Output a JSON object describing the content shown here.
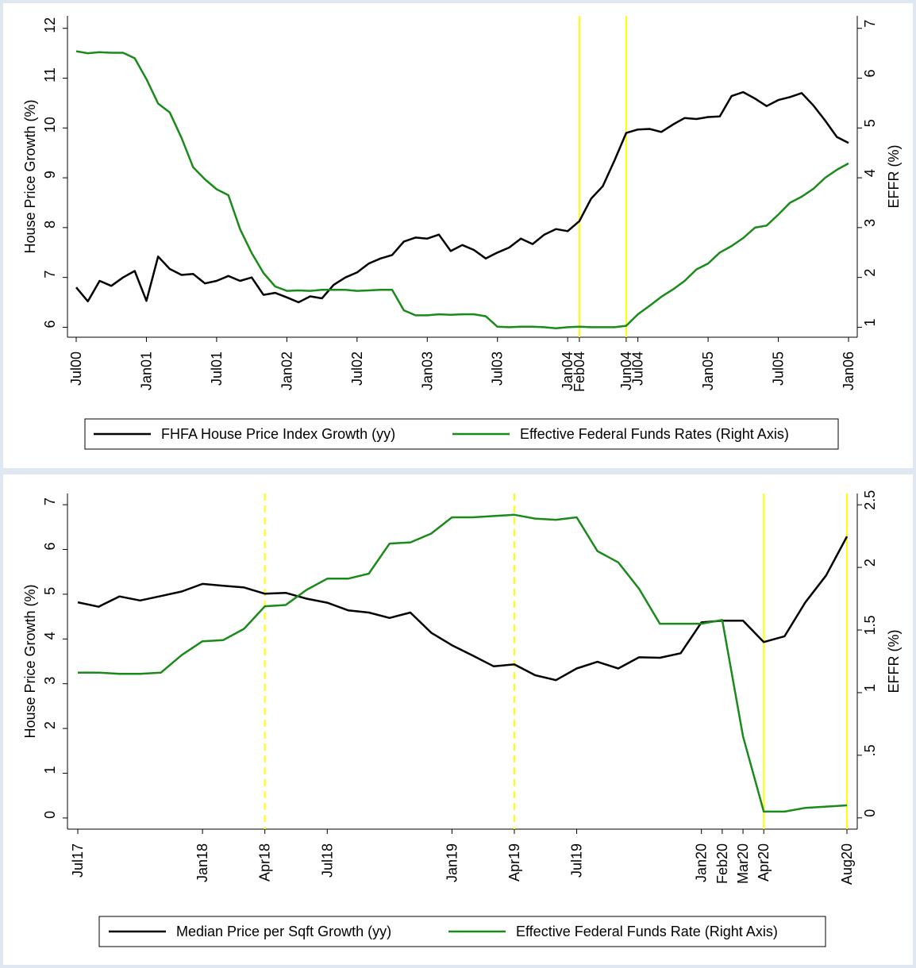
{
  "chart_data": [
    {
      "type": "line",
      "categories": [
        "Jul00",
        null,
        null,
        null,
        null,
        null,
        "Jan01",
        null,
        null,
        null,
        null,
        null,
        "Jul01",
        null,
        null,
        null,
        null,
        null,
        "Jan02",
        null,
        null,
        null,
        null,
        null,
        "Jul02",
        null,
        null,
        null,
        null,
        null,
        "Jan03",
        null,
        null,
        null,
        null,
        null,
        "Jul03",
        null,
        null,
        null,
        null,
        null,
        "Jan04",
        "Feb04",
        null,
        null,
        null,
        "Jun04",
        "Jul04",
        null,
        null,
        null,
        null,
        null,
        "Jan05",
        null,
        null,
        null,
        null,
        null,
        "Jul05",
        null,
        null,
        null,
        null,
        null,
        "Jan06"
      ],
      "series": [
        {
          "name": "FHFA House Price Index Growth (yy)",
          "color": "#000000",
          "axis": "y",
          "values": [
            6.8,
            6.52,
            6.93,
            6.83,
            7.0,
            7.13,
            6.53,
            7.42,
            7.17,
            7.05,
            7.07,
            6.88,
            6.93,
            7.03,
            6.93,
            7.0,
            6.65,
            6.69,
            6.6,
            6.5,
            6.62,
            6.58,
            6.85,
            7.0,
            7.1,
            7.28,
            7.38,
            7.45,
            7.72,
            7.8,
            7.78,
            7.86,
            7.53,
            7.65,
            7.55,
            7.38,
            7.5,
            7.6,
            7.78,
            7.67,
            7.86,
            7.97,
            7.93,
            8.13,
            8.58,
            8.83,
            9.35,
            9.9,
            9.97,
            9.98,
            9.92,
            10.07,
            10.2,
            10.18,
            10.22,
            10.23,
            10.64,
            10.72,
            10.59,
            10.44,
            10.56,
            10.62,
            10.7,
            10.45,
            10.15,
            9.82,
            9.7
          ]
        },
        {
          "name": "Effective Federal Funds Rates (Right Axis)",
          "color": "#1a8a1a",
          "axis": "y2",
          "values": [
            6.54,
            6.5,
            6.52,
            6.51,
            6.51,
            6.4,
            5.98,
            5.49,
            5.31,
            4.8,
            4.21,
            3.97,
            3.77,
            3.65,
            2.97,
            2.49,
            2.09,
            1.82,
            1.73,
            1.74,
            1.73,
            1.75,
            1.75,
            1.75,
            1.73,
            1.74,
            1.75,
            1.75,
            1.34,
            1.24,
            1.24,
            1.26,
            1.25,
            1.26,
            1.26,
            1.22,
            1.01,
            1.0,
            1.01,
            1.01,
            1.0,
            0.98,
            1.0,
            1.01,
            1.0,
            1.0,
            1.0,
            1.03,
            1.26,
            1.43,
            1.61,
            1.76,
            1.93,
            2.16,
            2.28,
            2.5,
            2.63,
            2.79,
            3.0,
            3.04,
            3.26,
            3.5,
            3.62,
            3.78,
            4.0,
            4.16,
            4.29
          ]
        }
      ],
      "y_label": "House Price Growth (%)",
      "y2_label": "EFFR (%)",
      "ylim": [
        5.8,
        12.25
      ],
      "yticks": [
        6,
        7,
        8,
        9,
        10,
        11,
        12
      ],
      "y2lim": [
        0.8,
        7.25
      ],
      "y2ticks": [
        1,
        2,
        3,
        4,
        5,
        6,
        7
      ],
      "vlines": [
        {
          "index": 43,
          "style": "solid"
        },
        {
          "index": 47,
          "style": "solid"
        }
      ],
      "vline_color": "#ffff00",
      "grid": false,
      "legend": "bottom"
    },
    {
      "type": "line",
      "categories": [
        "Jul17",
        null,
        null,
        null,
        null,
        null,
        "Jan18",
        null,
        null,
        "Apr18",
        null,
        null,
        "Jul18",
        null,
        null,
        null,
        null,
        null,
        "Jan19",
        null,
        null,
        "Apr19",
        null,
        null,
        "Jul19",
        null,
        null,
        null,
        null,
        null,
        "Jan20",
        "Feb20",
        "Mar20",
        "Apr20",
        null,
        null,
        null,
        "Aug20"
      ],
      "series": [
        {
          "name": "Median Price per Sqft Growth (yy)",
          "color": "#000000",
          "axis": "y",
          "values": [
            4.82,
            4.72,
            4.95,
            4.86,
            4.96,
            5.06,
            5.23,
            5.19,
            5.15,
            5.01,
            5.03,
            4.9,
            4.81,
            4.64,
            4.59,
            4.47,
            4.59,
            4.14,
            3.86,
            3.63,
            3.39,
            3.43,
            3.19,
            3.08,
            3.34,
            3.49,
            3.34,
            3.59,
            3.58,
            3.68,
            4.37,
            4.41,
            4.41,
            3.93,
            4.06,
            4.82,
            5.42,
            6.29
          ]
        },
        {
          "name": "Effective Federal Funds Rate (Right Axis)",
          "color": "#1a8a1a",
          "axis": "y2",
          "values": [
            1.16,
            1.16,
            1.15,
            1.15,
            1.16,
            1.3,
            1.41,
            1.42,
            1.51,
            1.69,
            1.7,
            1.82,
            1.91,
            1.91,
            1.95,
            2.19,
            2.2,
            2.27,
            2.4,
            2.4,
            2.41,
            2.42,
            2.39,
            2.38,
            2.4,
            2.13,
            2.04,
            1.83,
            1.55,
            1.55,
            1.55,
            1.58,
            0.65,
            0.05,
            0.05,
            0.08,
            0.09,
            0.1
          ]
        }
      ],
      "y_label": "House Price Growth (%)",
      "y2_label": "EFFR (%)",
      "ylim": [
        -0.25,
        7.25
      ],
      "yticks": [
        0,
        1,
        2,
        3,
        4,
        5,
        6,
        7
      ],
      "y2lim": [
        -0.09,
        2.59
      ],
      "y2ticks": [
        0,
        {
          "value": 0.5,
          "label": ".5"
        },
        1,
        1.5,
        2,
        2.5
      ],
      "vlines": [
        {
          "index": 9,
          "style": "dashed"
        },
        {
          "index": 21,
          "style": "dashed"
        },
        {
          "index": 33,
          "style": "solid"
        },
        {
          "index": 37,
          "style": "solid"
        }
      ],
      "vline_color": "#ffff00",
      "grid": false,
      "legend": "bottom"
    }
  ]
}
